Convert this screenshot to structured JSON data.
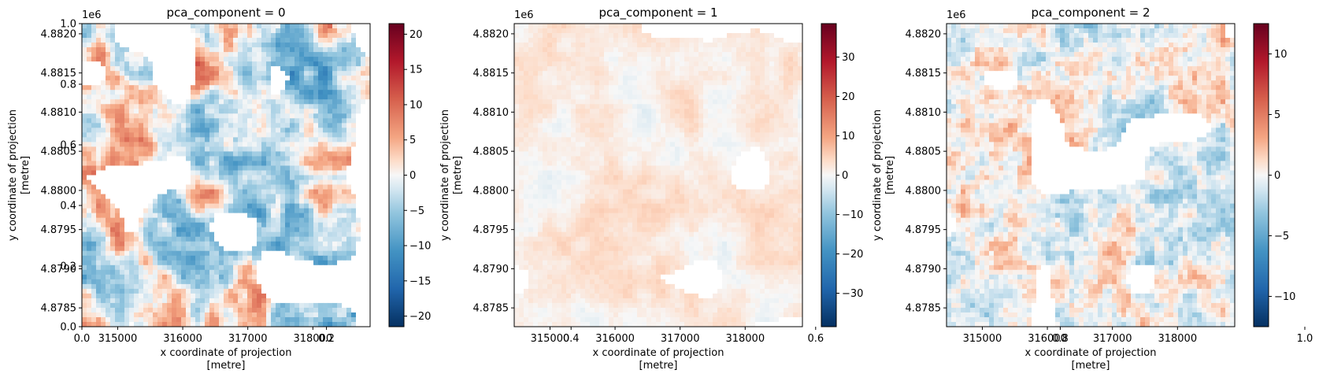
{
  "figure": {
    "overlay_axis": {
      "x_ticks": [
        "0.0",
        "0.2",
        "0.4",
        "0.6",
        "0.8",
        "1.0"
      ],
      "y_ticks": [
        "0.0",
        "0.2",
        "0.4",
        "0.6",
        "0.8",
        "1.0"
      ],
      "xlim": [
        0,
        1
      ],
      "ylim": [
        0,
        1
      ]
    }
  },
  "chart_data": [
    {
      "type": "heatmap",
      "title": "pca_component = 0",
      "xlabel": "x coordinate of projection\n[metre]",
      "ylabel": "y coordinate of projection\n[metre]",
      "x_ticks": [
        315000,
        316000,
        317000,
        318000
      ],
      "x_tick_labels": [
        "315000",
        "316000",
        "317000",
        "318000"
      ],
      "xlim": [
        314450,
        318880
      ],
      "y_ticks": [
        4.8785,
        4.879,
        4.8795,
        4.88,
        4.8805,
        4.881,
        4.8815,
        4.882
      ],
      "y_tick_labels": [
        "4.8785",
        "4.8790",
        "4.8795",
        "4.8800",
        "4.8805",
        "4.8810",
        "4.8815",
        "4.8820"
      ],
      "ylim": [
        4.87826,
        4.88213
      ],
      "y_offset_label": "1e6",
      "colormap": "RdBu_r",
      "colorbar": {
        "ticks": [
          -20,
          -15,
          -10,
          -5,
          0,
          5,
          10,
          15,
          20
        ],
        "tick_labels": [
          "−20",
          "−15",
          "−10",
          "−5",
          "0",
          "5",
          "10",
          "15",
          "20"
        ],
        "range": [
          -21.5,
          21.5
        ]
      },
      "pattern": "mixed-red-blue"
    },
    {
      "type": "heatmap",
      "title": "pca_component = 1",
      "xlabel": "x coordinate of projection\n[metre]",
      "ylabel": "y coordinate of projection\n[metre]",
      "x_ticks": [
        315000,
        316000,
        317000,
        318000
      ],
      "x_tick_labels": [
        "315000",
        "316000",
        "317000",
        "318000"
      ],
      "xlim": [
        314450,
        318880
      ],
      "y_ticks": [
        4.8785,
        4.879,
        4.8795,
        4.88,
        4.8805,
        4.881,
        4.8815,
        4.882
      ],
      "y_tick_labels": [
        "4.8785",
        "4.8790",
        "4.8795",
        "4.8800",
        "4.8805",
        "4.8810",
        "4.8815",
        "4.8820"
      ],
      "ylim": [
        4.87826,
        4.88213
      ],
      "y_offset_label": "1e6",
      "colormap": "RdBu_r",
      "colorbar": {
        "ticks": [
          -30,
          -20,
          -10,
          0,
          10,
          20,
          30
        ],
        "tick_labels": [
          "−30",
          "−20",
          "−10",
          "0",
          "10",
          "20",
          "30"
        ],
        "range": [
          -38.5,
          38.5
        ]
      },
      "pattern": "faint"
    },
    {
      "type": "heatmap",
      "title": "pca_component = 2",
      "xlabel": "x coordinate of projection\n[metre]",
      "ylabel": "y coordinate of projection\n[metre]",
      "x_ticks": [
        315000,
        316000,
        317000,
        318000
      ],
      "x_tick_labels": [
        "315000",
        "316000",
        "317000",
        "318000"
      ],
      "xlim": [
        314450,
        318880
      ],
      "y_ticks": [
        4.8785,
        4.879,
        4.8795,
        4.88,
        4.8805,
        4.881,
        4.8815,
        4.882
      ],
      "y_tick_labels": [
        "4.8785",
        "4.8790",
        "4.8795",
        "4.8800",
        "4.8805",
        "4.8810",
        "4.8815",
        "4.8820"
      ],
      "ylim": [
        4.87826,
        4.88213
      ],
      "y_offset_label": "1e6",
      "colormap": "RdBu_r",
      "colorbar": {
        "ticks": [
          -10,
          -5,
          0,
          5,
          10
        ],
        "tick_labels": [
          "−10",
          "−5",
          "0",
          "5",
          "10"
        ],
        "range": [
          -12.5,
          12.5
        ]
      },
      "pattern": "mixed-light"
    }
  ]
}
